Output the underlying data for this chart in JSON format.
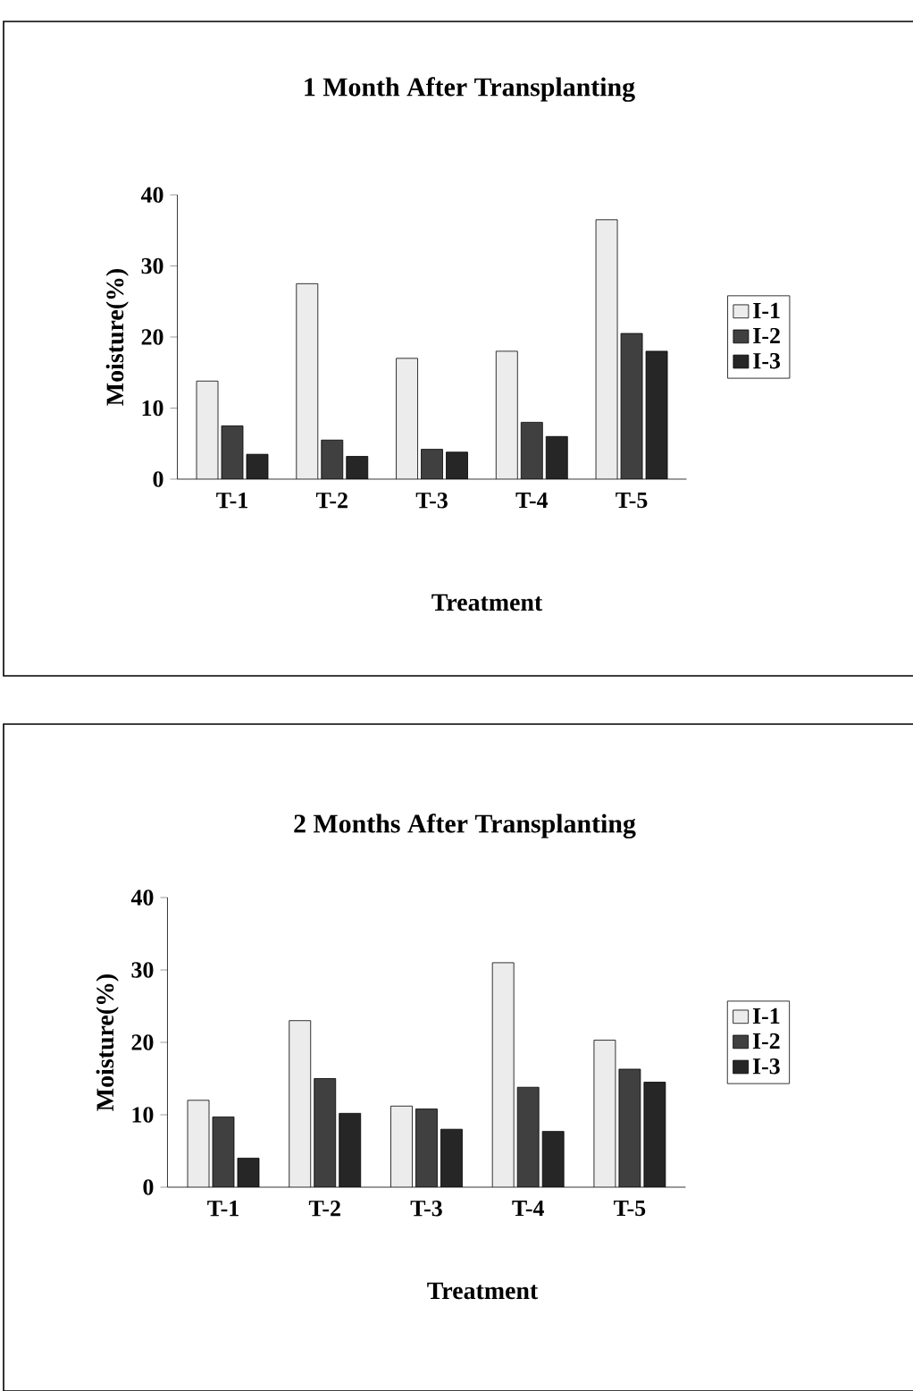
{
  "chart_data": [
    {
      "type": "bar",
      "title": "1 Month After Transplanting",
      "xlabel": "Treatment",
      "ylabel": "Moisture(%)",
      "categories": [
        "T-1",
        "T-2",
        "T-3",
        "T-4",
        "T-5"
      ],
      "ylim": [
        0,
        40
      ],
      "yticks": [
        0,
        10,
        20,
        30,
        40
      ],
      "legend": "right",
      "series": [
        {
          "name": "I-1",
          "color": "#ececec",
          "values": [
            13.8,
            27.5,
            17,
            18,
            36.5
          ]
        },
        {
          "name": "I-2",
          "color": "#404040",
          "values": [
            7.5,
            5.5,
            4.2,
            8,
            20.5
          ]
        },
        {
          "name": "I-3",
          "color": "#262626",
          "values": [
            3.5,
            3.2,
            3.8,
            6,
            18
          ]
        }
      ]
    },
    {
      "type": "bar",
      "title": "2 Months After Transplanting",
      "xlabel": "Treatment",
      "ylabel": "Moisture(%)",
      "categories": [
        "T-1",
        "T-2",
        "T-3",
        "T-4",
        "T-5"
      ],
      "ylim": [
        0,
        40
      ],
      "yticks": [
        0,
        10,
        20,
        30,
        40
      ],
      "legend": "right",
      "series": [
        {
          "name": "I-1",
          "color": "#ececec",
          "values": [
            12,
            23,
            11.2,
            31,
            20.3
          ]
        },
        {
          "name": "I-2",
          "color": "#404040",
          "values": [
            9.7,
            15,
            10.8,
            13.8,
            16.3
          ]
        },
        {
          "name": "I-3",
          "color": "#262626",
          "values": [
            4,
            10.2,
            8,
            7.7,
            14.5
          ]
        }
      ]
    }
  ]
}
